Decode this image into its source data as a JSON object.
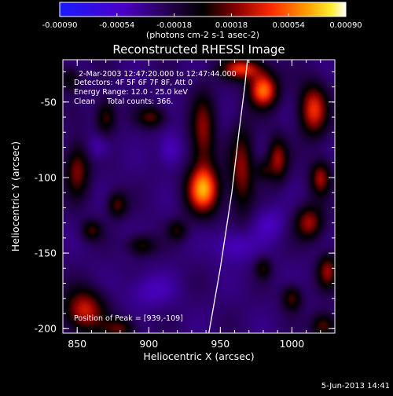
{
  "colorbar": {
    "ticks": [
      "-0.00090",
      "-0.00054",
      "-0.00018",
      "0.00018",
      "0.00054",
      "0.00090"
    ],
    "tick_values": [
      -0.0009,
      -0.00054,
      -0.00018,
      0.00018,
      0.00054,
      0.0009
    ],
    "range": [
      -0.0009,
      0.0009
    ],
    "unit_label": "(photons cm-2 s-1 asec-2)",
    "colormap": "blue-black-red-yellow-white"
  },
  "chart_data": {
    "type": "heatmap",
    "title": "Reconstructed RHESSI Image",
    "xlabel": "Heliocentric X (arcsec)",
    "ylabel": "Heliocentric Y (arcsec)",
    "xlim": [
      840,
      1030
    ],
    "ylim": [
      -203,
      -22
    ],
    "xticks": [
      850,
      900,
      950,
      1000
    ],
    "yticks": [
      -50,
      -100,
      -150,
      -200
    ],
    "xtick_labels": [
      "850",
      "900",
      "950",
      "1000"
    ],
    "ytick_labels": [
      "-50",
      "-100",
      "-150",
      "-200"
    ],
    "annotations": [
      "2-Mar-2003 12:47:20.000 to 12:47:44.000",
      "Detectors: 4F 5F 6F 7F 8F, Att 0",
      "Energy Range: 12.0 - 25.0 keV",
      "Clean     Total counts: 366.",
      "Position of Peak = [939,-109]"
    ],
    "peak": {
      "x": 939,
      "y": -109
    },
    "limb_curve": [
      {
        "x": 942,
        "y": -203
      },
      {
        "x": 950,
        "y": -160
      },
      {
        "x": 958,
        "y": -110
      },
      {
        "x": 963,
        "y": -70
      },
      {
        "x": 967,
        "y": -40
      },
      {
        "x": 969,
        "y": -22
      }
    ],
    "sources": [
      {
        "x": 938,
        "y": -108,
        "sx": 8,
        "sy": 11,
        "a": 1.0
      },
      {
        "x": 980,
        "y": -42,
        "sx": 7,
        "sy": 8,
        "a": 0.95
      },
      {
        "x": 965,
        "y": -28,
        "sx": 10,
        "sy": 5,
        "a": 0.75
      },
      {
        "x": 938,
        "y": -70,
        "sx": 6,
        "sy": 18,
        "a": 0.55
      },
      {
        "x": 965,
        "y": -95,
        "sx": 6,
        "sy": 20,
        "a": 0.55
      },
      {
        "x": 990,
        "y": -88,
        "sx": 5,
        "sy": 10,
        "a": 0.6
      },
      {
        "x": 1015,
        "y": -55,
        "sx": 7,
        "sy": 12,
        "a": 0.75
      },
      {
        "x": 1020,
        "y": -100,
        "sx": 5,
        "sy": 8,
        "a": 0.6
      },
      {
        "x": 1012,
        "y": -130,
        "sx": 7,
        "sy": 8,
        "a": 0.6
      },
      {
        "x": 1025,
        "y": -162,
        "sx": 5,
        "sy": 8,
        "a": 0.55
      },
      {
        "x": 1000,
        "y": -180,
        "sx": 5,
        "sy": 6,
        "a": 0.45
      },
      {
        "x": 1022,
        "y": -198,
        "sx": 6,
        "sy": 6,
        "a": 0.5
      },
      {
        "x": 980,
        "y": -160,
        "sx": 4,
        "sy": 5,
        "a": 0.35
      },
      {
        "x": 850,
        "y": -95,
        "sx": 6,
        "sy": 12,
        "a": 0.55
      },
      {
        "x": 870,
        "y": -60,
        "sx": 5,
        "sy": 8,
        "a": 0.45
      },
      {
        "x": 878,
        "y": -118,
        "sx": 5,
        "sy": 6,
        "a": 0.45
      },
      {
        "x": 860,
        "y": -135,
        "sx": 5,
        "sy": 5,
        "a": 0.4
      },
      {
        "x": 902,
        "y": -60,
        "sx": 7,
        "sy": 5,
        "a": 0.45
      },
      {
        "x": 895,
        "y": -145,
        "sx": 7,
        "sy": 5,
        "a": 0.4
      },
      {
        "x": 920,
        "y": -135,
        "sx": 5,
        "sy": 5,
        "a": 0.35
      },
      {
        "x": 855,
        "y": -188,
        "sx": 10,
        "sy": 10,
        "a": 0.7
      },
      {
        "x": 880,
        "y": -200,
        "sx": 8,
        "sy": 5,
        "a": 0.45
      },
      {
        "x": 845,
        "y": -35,
        "sx": 5,
        "sy": 6,
        "a": 0.35
      },
      {
        "x": 980,
        "y": -95,
        "sx": 4,
        "sy": 5,
        "a": 0.3
      },
      {
        "x": 915,
        "y": -82,
        "sx": 6,
        "sy": 8,
        "a": -0.25
      },
      {
        "x": 960,
        "y": -145,
        "sx": 10,
        "sy": 8,
        "a": -0.25
      },
      {
        "x": 900,
        "y": -175,
        "sx": 12,
        "sy": 8,
        "a": -0.2
      },
      {
        "x": 985,
        "y": -130,
        "sx": 8,
        "sy": 8,
        "a": -0.2
      },
      {
        "x": 865,
        "y": -80,
        "sx": 6,
        "sy": 6,
        "a": -0.2
      }
    ]
  },
  "footer": {
    "date": "5-Jun-2013 14:41"
  }
}
